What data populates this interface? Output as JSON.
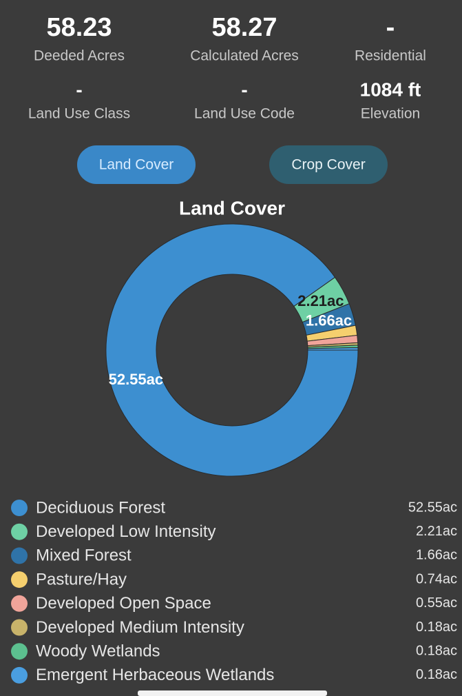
{
  "stats": [
    {
      "value": "58.23",
      "label": "Deeded Acres"
    },
    {
      "value": "58.27",
      "label": "Calculated Acres"
    },
    {
      "value": "-",
      "label": "Residential"
    },
    {
      "value": "-",
      "label": "Land Use Class"
    },
    {
      "value": "-",
      "label": "Land Use Code"
    },
    {
      "value": "1084 ft",
      "label": "Elevation"
    }
  ],
  "buttons": [
    "Land Cover",
    "Crop Cover"
  ],
  "chart_data": {
    "type": "donut",
    "title": "Land Cover",
    "categories": [
      "Deciduous Forest",
      "Developed Low Intensity",
      "Mixed Forest",
      "Pasture/Hay",
      "Developed Open Space",
      "Developed Medium Intensity",
      "Woody Wetlands",
      "Emergent Herbaceous Wetlands"
    ],
    "values": [
      52.55,
      2.21,
      1.66,
      0.74,
      0.55,
      0.18,
      0.18,
      0.18
    ],
    "value_labels": [
      "52.55ac",
      "2.21ac",
      "1.66ac",
      "0.74ac",
      "0.55ac",
      "0.18ac",
      "0.18ac",
      "0.18ac"
    ],
    "colors": [
      "#3d8fd0",
      "#6ed0a4",
      "#2f73a8",
      "#f5cf6e",
      "#f0a49a",
      "#c8b36a",
      "#5cc08f",
      "#4a9ee0"
    ]
  }
}
